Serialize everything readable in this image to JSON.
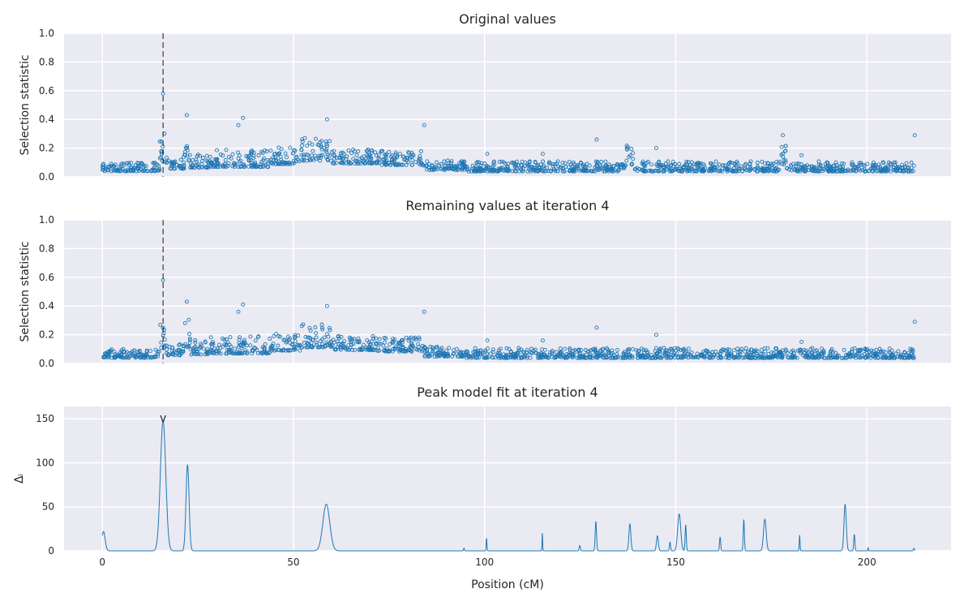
{
  "chart_data": [
    {
      "type": "scatter",
      "title": "Original values",
      "xlabel": "",
      "ylabel": "Selection statistic",
      "xlim": [
        -10,
        222
      ],
      "ylim": [
        0,
        1
      ],
      "x_ticks": [
        0,
        50,
        100,
        150,
        200
      ],
      "y_ticks": [
        0.0,
        0.2,
        0.4,
        0.6,
        0.8,
        1.0
      ],
      "y_tick_labels": [
        "0.0",
        "0.2",
        "0.4",
        "0.6",
        "0.8",
        "1.0"
      ],
      "grid": true,
      "marker_color": "#1f77b4",
      "vline_x": 15.9,
      "outliers": [
        [
          15.9,
          0.58
        ],
        [
          22.1,
          0.43
        ],
        [
          36.8,
          0.41
        ],
        [
          58.8,
          0.4
        ],
        [
          35.6,
          0.36
        ],
        [
          84.2,
          0.36
        ],
        [
          212.5,
          0.29
        ],
        [
          178.0,
          0.29
        ],
        [
          129.3,
          0.26
        ],
        [
          144.9,
          0.2
        ],
        [
          100.7,
          0.16
        ],
        [
          115.2,
          0.16
        ],
        [
          182.9,
          0.15
        ]
      ],
      "clusters": [
        [
          0,
          15,
          0.05,
          0.03
        ],
        [
          15,
          16.5,
          0.14,
          0.1
        ],
        [
          16.5,
          21.5,
          0.07,
          0.04
        ],
        [
          21.5,
          23,
          0.15,
          0.1
        ],
        [
          23,
          28,
          0.08,
          0.05
        ],
        [
          28,
          44,
          0.09,
          0.06
        ],
        [
          44,
          52,
          0.11,
          0.06
        ],
        [
          52,
          60,
          0.14,
          0.08
        ],
        [
          60,
          72,
          0.11,
          0.05
        ],
        [
          72,
          84,
          0.1,
          0.05
        ],
        [
          84,
          95,
          0.06,
          0.035
        ],
        [
          95,
          137,
          0.05,
          0.035
        ],
        [
          137,
          139,
          0.11,
          0.07
        ],
        [
          139,
          177,
          0.05,
          0.035
        ],
        [
          177,
          179,
          0.11,
          0.07
        ],
        [
          179,
          212.5,
          0.05,
          0.035
        ]
      ]
    },
    {
      "type": "scatter",
      "title": "Remaining values at iteration 4",
      "xlabel": "",
      "ylabel": "Selection statistic",
      "xlim": [
        -10,
        222
      ],
      "ylim": [
        0,
        1
      ],
      "x_ticks": [
        0,
        50,
        100,
        150,
        200
      ],
      "y_ticks": [
        0.0,
        0.2,
        0.4,
        0.6,
        0.8,
        1.0
      ],
      "y_tick_labels": [
        "0.0",
        "0.2",
        "0.4",
        "0.6",
        "0.8",
        "1.0"
      ],
      "grid": true,
      "marker_color": "#1f77b4",
      "vline_x": 15.9,
      "outliers": [
        [
          15.9,
          0.58
        ],
        [
          22.1,
          0.43
        ],
        [
          36.8,
          0.41
        ],
        [
          58.8,
          0.4
        ],
        [
          35.6,
          0.36
        ],
        [
          84.2,
          0.36
        ],
        [
          212.5,
          0.29
        ],
        [
          129.3,
          0.25
        ],
        [
          144.9,
          0.2
        ],
        [
          100.7,
          0.16
        ],
        [
          115.2,
          0.16
        ],
        [
          182.9,
          0.15
        ]
      ],
      "clusters": [
        [
          0,
          15,
          0.05,
          0.03
        ],
        [
          15,
          16.5,
          0.14,
          0.1
        ],
        [
          16.5,
          21.5,
          0.07,
          0.04
        ],
        [
          21.5,
          23,
          0.15,
          0.1
        ],
        [
          23,
          28,
          0.08,
          0.05
        ],
        [
          28,
          44,
          0.09,
          0.06
        ],
        [
          44,
          52,
          0.11,
          0.06
        ],
        [
          52,
          60,
          0.14,
          0.08
        ],
        [
          60,
          72,
          0.11,
          0.05
        ],
        [
          72,
          84,
          0.1,
          0.05
        ],
        [
          84,
          95,
          0.06,
          0.035
        ],
        [
          95,
          212.5,
          0.05,
          0.035
        ]
      ]
    },
    {
      "type": "line",
      "title": "Peak model fit at iteration 4",
      "xlabel": "Position (cM)",
      "ylabel": "Δᵢ",
      "xlim": [
        -10,
        222
      ],
      "ylim": [
        0,
        164
      ],
      "x_ticks": [
        0,
        50,
        100,
        150,
        200
      ],
      "x_tick_labels": [
        "0",
        "50",
        "100",
        "150",
        "200"
      ],
      "y_ticks": [
        0,
        50,
        100,
        150
      ],
      "y_tick_labels": [
        "0",
        "50",
        "100",
        "150"
      ],
      "grid": true,
      "line_color": "#1f77b4",
      "marker_label": "v",
      "marker_x": 15.9,
      "marker_y": 150,
      "peaks": [
        [
          0.3,
          22,
          0.9
        ],
        [
          15.9,
          148,
          1.4
        ],
        [
          22.3,
          98,
          0.8
        ],
        [
          58.6,
          53,
          1.8
        ],
        [
          94.6,
          3,
          0.2
        ],
        [
          100.5,
          15,
          0.2
        ],
        [
          115.1,
          22,
          0.15
        ],
        [
          124.9,
          6,
          0.3
        ],
        [
          129.1,
          34,
          0.35
        ],
        [
          138.0,
          31,
          0.5
        ],
        [
          145.2,
          17,
          0.5
        ],
        [
          148.5,
          10,
          0.3
        ],
        [
          150.9,
          42,
          0.8
        ],
        [
          152.6,
          30,
          0.3
        ],
        [
          161.6,
          16,
          0.3
        ],
        [
          167.8,
          36,
          0.3
        ],
        [
          173.3,
          36,
          0.7
        ],
        [
          182.4,
          18,
          0.2
        ],
        [
          194.3,
          53,
          0.6
        ],
        [
          196.7,
          19,
          0.3
        ],
        [
          200.3,
          4,
          0.15
        ],
        [
          212.3,
          3,
          0.3
        ]
      ]
    }
  ]
}
